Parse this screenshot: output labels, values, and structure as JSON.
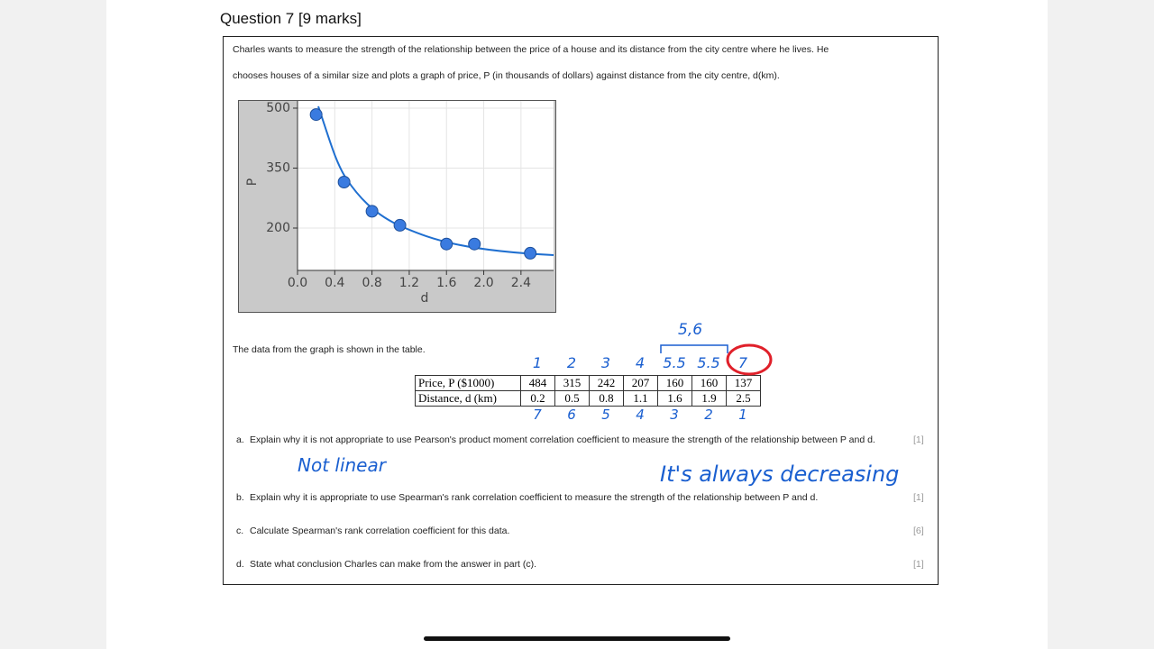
{
  "heading": "Question 7 [9 marks]",
  "intro": [
    "Charles wants to measure the strength of the relationship between the price of a house and its distance from the city centre where he lives. He",
    "chooses houses of a similar size and plots a graph of price, P (in thousands of dollars) against distance from the city centre, d(km)."
  ],
  "graph": {
    "x_label": "d",
    "y_label": "P",
    "xlim": [
      0,
      2.75
    ],
    "ylim": [
      94,
      518
    ],
    "xticks": [
      {
        "value": 0,
        "label": "0.0"
      },
      0.4,
      0.8,
      1.2,
      1.6,
      {
        "value": 2,
        "label": "2.0"
      },
      2.4
    ],
    "yticks": [
      200,
      350,
      500
    ],
    "grid": true,
    "point_color": "#3a7be0",
    "curve_color": "#1f6fd0"
  },
  "table_caption": "The data from the graph is shown in the table.",
  "table": {
    "rows": [
      {
        "header": "Price, P ($1000)",
        "values": [
          484,
          315,
          242,
          207,
          160,
          160,
          137
        ]
      },
      {
        "header": "Distance, d (km)",
        "values": [
          0.2,
          0.5,
          0.8,
          1.1,
          1.6,
          1.9,
          2.5
        ]
      }
    ]
  },
  "annotations": {
    "ranks_price": [
      "1",
      "2",
      "3",
      "4",
      "5.5",
      "5.5",
      "7"
    ],
    "ranks_distance": [
      "7",
      "6",
      "5",
      "4",
      "3",
      "2",
      "1"
    ],
    "tied_ranks": "5,6",
    "answer_a": "Not linear",
    "answer_b": "It's always decreasing"
  },
  "questions": [
    {
      "label": "a.",
      "text": "Explain why it is not appropriate to use Pearson's product moment correlation coefficient to measure the strength of the relationship between P and d.",
      "marks": "[1]"
    },
    {
      "label": "b.",
      "text": "Explain why it is appropriate to use Spearman's rank correlation coefficient to measure the strength of the relationship between P and d.",
      "marks": "[1]"
    },
    {
      "label": "c.",
      "text": "Calculate Spearman's rank correlation coefficient for this data.",
      "marks": "[6]"
    },
    {
      "label": "d.",
      "text": "State what conclusion Charles can make from the answer in part (c).",
      "marks": "[1]"
    }
  ]
}
